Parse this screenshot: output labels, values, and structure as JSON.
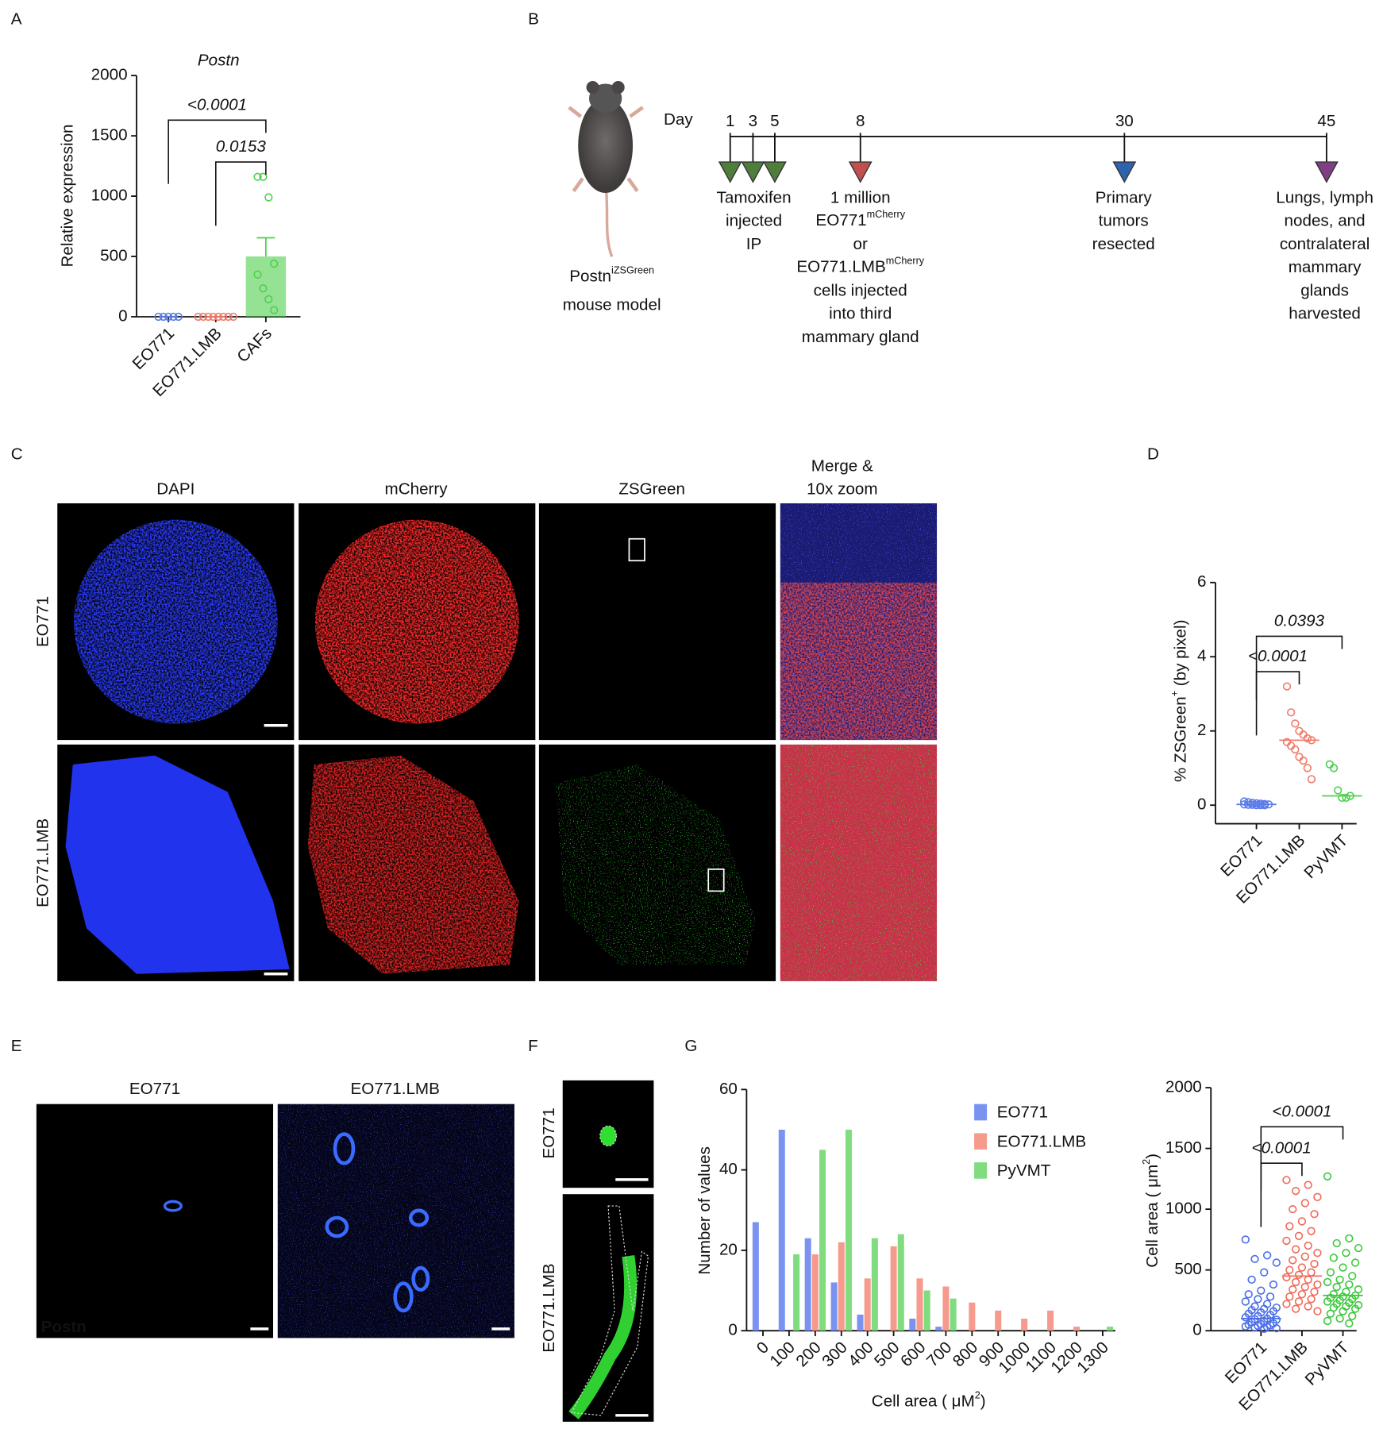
{
  "panel_labels": [
    "A",
    "B",
    "C",
    "D",
    "E",
    "F",
    "G"
  ],
  "chart_data": [
    {
      "type": "bar",
      "title": "Postn",
      "y_label": "Relative expression",
      "categories": [
        "EO771",
        "EO771.LMB",
        "CAFs"
      ],
      "colors": [
        "#5b7be8",
        "#f07b6b",
        "#4fcf4f"
      ],
      "values": [
        0,
        0,
        500
      ],
      "errors": [
        0,
        0,
        155
      ],
      "points": [
        [
          0,
          0,
          0,
          0,
          0
        ],
        [
          0,
          0,
          0,
          0,
          0,
          0,
          0,
          0
        ],
        [
          1160,
          1160,
          990,
          440,
          350,
          235,
          145,
          55
        ]
      ],
      "ylim": [
        0,
        2000
      ],
      "yticks": [
        0,
        500,
        1000,
        1500,
        2000
      ],
      "comparisons": [
        {
          "groups": [
            "EO771",
            "CAFs"
          ],
          "label": "<0.0001"
        },
        {
          "groups": [
            "EO771.LMB",
            "CAFs"
          ],
          "label": "0.0153"
        }
      ]
    },
    {
      "type": "dot",
      "y_label": {
        "text": "% ZSGreen",
        "sup": "+",
        "after": " (by pixel)"
      },
      "categories": [
        "EO771",
        "EO771.LMB",
        "PyVMT"
      ],
      "colors": [
        "#5b7be8",
        "#f07b6b",
        "#4fcf4f"
      ],
      "points": [
        [
          0.1,
          0.08,
          0.06,
          0.05,
          0.04,
          0.03,
          0.02,
          0.02,
          0.01,
          0.01,
          0,
          0,
          0
        ],
        [
          3.2,
          2.5,
          2.2,
          2.0,
          1.9,
          1.8,
          1.75,
          1.7,
          1.6,
          1.5,
          1.3,
          1.2,
          1.0,
          0.7
        ],
        [
          1.1,
          1.0,
          0.4,
          0.2,
          0.2,
          0.25
        ]
      ],
      "medians": [
        0.02,
        1.75,
        0.25
      ],
      "ylim": [
        -0.5,
        6
      ],
      "yticks": [
        0,
        2,
        4,
        6
      ],
      "comparisons": [
        {
          "groups": [
            "EO771",
            "EO771.LMB"
          ],
          "label": "<0.0001"
        },
        {
          "groups": [
            "EO771",
            "PyVMT"
          ],
          "label": "0.0393"
        }
      ]
    },
    {
      "type": "grouped_bar",
      "x_label": {
        "text": "Cell area ( μM",
        "sup": "2",
        "after": ")"
      },
      "y_label": "Number of values",
      "categories": [
        "0",
        "100",
        "200",
        "300",
        "400",
        "500",
        "600",
        "700",
        "800",
        "900",
        "1000",
        "1100",
        "1200",
        "1300"
      ],
      "series": [
        {
          "name": "EO771",
          "color": "#7b93f0",
          "values": [
            27,
            50,
            23,
            12,
            4,
            0,
            3,
            1,
            0,
            0,
            0,
            0,
            0,
            0
          ]
        },
        {
          "name": "EO771.LMB",
          "color": "#f59a8c",
          "values": [
            0,
            0,
            19,
            22,
            13,
            21,
            13,
            11,
            7,
            5,
            3,
            5,
            1,
            0
          ]
        },
        {
          "name": "PyVMT",
          "color": "#7fdc7f",
          "values": [
            0,
            19,
            45,
            50,
            23,
            24,
            10,
            8,
            0,
            0,
            0,
            0,
            0,
            1
          ]
        }
      ],
      "ylim": [
        0,
        60
      ],
      "yticks": [
        0,
        20,
        40,
        60
      ],
      "legend": "upper right"
    },
    {
      "type": "dot",
      "y_label": {
        "text": "Cell area ( μm",
        "sup": "2",
        "after": ")"
      },
      "categories": [
        "EO771",
        "EO771.LMB",
        "PyVMT"
      ],
      "colors": [
        "#4a6ee8",
        "#f06a58",
        "#3cc83c"
      ],
      "points": [
        [
          750,
          620,
          590,
          560,
          480,
          420,
          380,
          330,
          300,
          280,
          260,
          240,
          220,
          200,
          190,
          180,
          170,
          160,
          150,
          140,
          130,
          120,
          110,
          100,
          95,
          90,
          80,
          70,
          60,
          55,
          50,
          45,
          40,
          35,
          30,
          25,
          20,
          15
        ],
        [
          1240,
          1200,
          1150,
          1100,
          1050,
          1000,
          960,
          900,
          860,
          820,
          780,
          740,
          700,
          670,
          640,
          610,
          580,
          550,
          520,
          500,
          480,
          460,
          440,
          420,
          400,
          380,
          360,
          340,
          320,
          300,
          280,
          260,
          240,
          220,
          200,
          180,
          160
        ],
        [
          1270,
          760,
          720,
          680,
          640,
          600,
          560,
          520,
          480,
          450,
          420,
          400,
          380,
          360,
          340,
          320,
          300,
          290,
          280,
          270,
          260,
          250,
          240,
          230,
          220,
          210,
          200,
          190,
          180,
          160,
          140,
          120,
          100,
          80,
          60
        ]
      ],
      "medians": [
        100,
        450,
        290
      ],
      "ylim": [
        0,
        2000
      ],
      "yticks": [
        0,
        500,
        1000,
        1500,
        2000
      ],
      "comparisons": [
        {
          "groups": [
            "EO771",
            "EO771.LMB"
          ],
          "label": "<0.0001"
        },
        {
          "groups": [
            "EO771",
            "PyVMT"
          ],
          "label": "<0.0001"
        }
      ]
    }
  ],
  "timeline": {
    "model": [
      {
        "text": "Postn",
        "sup": "iZSGreen"
      },
      "mouse model"
    ],
    "day_label": "Day",
    "days": [
      1,
      3,
      5,
      8,
      30,
      45
    ],
    "marker_colors": [
      "#4f7d3c",
      "#4f7d3c",
      "#4f7d3c",
      "#c0504d",
      "#2e63ad",
      "#7f3f85"
    ],
    "events": [
      {
        "color": "#3d6b2a",
        "lines": [
          "Tamoxifen",
          "injected",
          "IP"
        ]
      },
      {
        "color": "#8a3c3a",
        "lines": [
          "1 million",
          {
            "text": "EO771",
            "sup": "mCherry"
          },
          "or",
          {
            "text": "EO771.LMB",
            "sup": "mCherry"
          },
          "cells injected",
          "into third",
          "mammary gland"
        ]
      },
      {
        "color": "#2a4f8f",
        "lines": [
          "Primary",
          "tumors",
          "resected"
        ]
      },
      {
        "color": "#6b2f6e",
        "lines": [
          "Lungs, lymph",
          "nodes, and",
          "contralateral",
          "mammary",
          "glands",
          "harvested"
        ]
      }
    ]
  },
  "panel_c": {
    "columns": [
      [
        "DAPI"
      ],
      [
        "mCherry"
      ],
      [
        "ZSGreen"
      ],
      [
        "Merge &",
        "10x zoom"
      ]
    ],
    "rows": [
      "EO771",
      "EO771.LMB"
    ]
  },
  "panel_e": {
    "columns": [
      "EO771",
      "EO771.LMB"
    ],
    "stain": "Postn"
  },
  "panel_f": {
    "rows": [
      "EO771",
      "EO771.LMB"
    ]
  }
}
